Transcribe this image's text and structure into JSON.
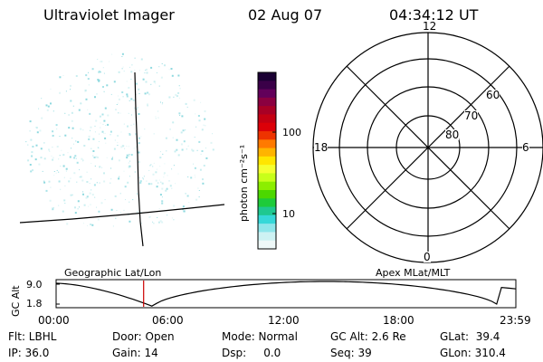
{
  "header": {
    "instrument": "Ultraviolet Imager",
    "date": "02 Aug 07",
    "time": "04:34:12 UT"
  },
  "colorbar": {
    "unit_label": "photon cm⁻²s⁻¹",
    "ticks": [
      "100",
      "10"
    ],
    "colors": [
      "#1a0033",
      "#3a0048",
      "#62005a",
      "#8a0040",
      "#a80025",
      "#c40012",
      "#dc0008",
      "#ee3300",
      "#ff7a00",
      "#ffb400",
      "#ffe600",
      "#f4ff30",
      "#c8ff1a",
      "#8cee00",
      "#4cd800",
      "#1ecb3a",
      "#1fc890",
      "#36d8d8",
      "#8ee6ea",
      "#cdf2f3",
      "#eef8f8"
    ]
  },
  "polar_plot": {
    "mlt_labels": {
      "top": "12",
      "left": "18",
      "right": "6",
      "bottom": "0"
    },
    "lat_labels": [
      "60",
      "70",
      "80"
    ]
  },
  "track": {
    "ylabel": "GC Alt",
    "y_ticks": [
      "9.0",
      "1.8"
    ],
    "left_title": "Geographic Lat/Lon",
    "right_title": "Apex MLat/MLT",
    "x_ticks": [
      "00:00",
      "06:00",
      "12:00",
      "18:00",
      "23:59"
    ],
    "marker_time_hours": 4.57
  },
  "status": {
    "flt": "Flt: LBHL",
    "ip": "IP: 36.0",
    "door": "Door: Open",
    "gain": "Gain: 14",
    "mode": "Mode: Normal",
    "dsp": "Dsp:     0.0",
    "gc_alt": "GC Alt: 2.6 Re",
    "seq": "Seq: 39",
    "glat": "GLat:  39.4",
    "glon": "GLon: 310.4"
  }
}
